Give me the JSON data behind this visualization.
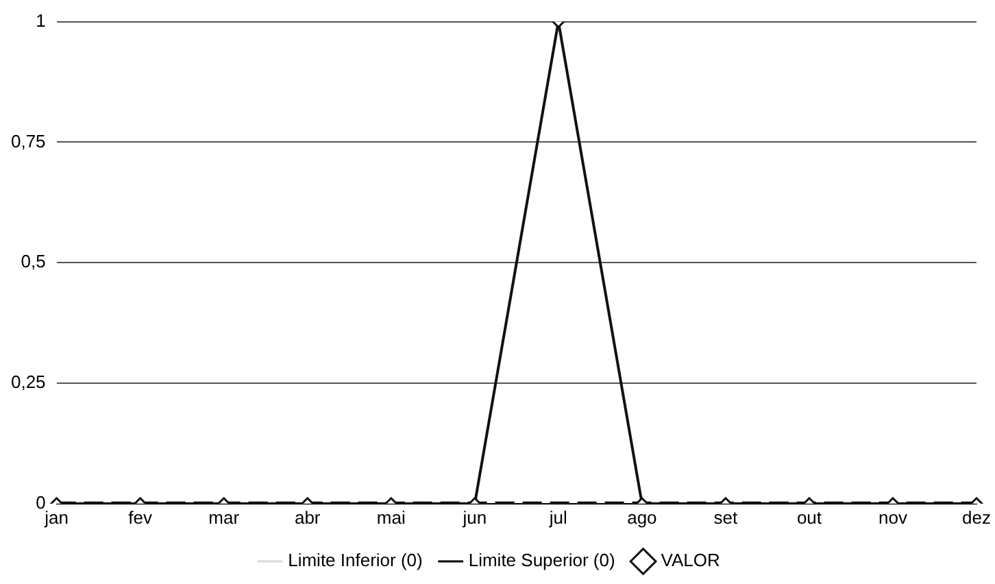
{
  "chart_data": {
    "type": "line",
    "categories": [
      "jan",
      "fev",
      "mar",
      "abr",
      "mai",
      "jun",
      "jul",
      "ago",
      "set",
      "out",
      "nov",
      "dez"
    ],
    "series": [
      {
        "name": "Limite Inferior (0)",
        "color": "#d9d9d9",
        "values": [
          0,
          0,
          0,
          0,
          0,
          0,
          0,
          0,
          0,
          0,
          0,
          0
        ],
        "line_style": "dashed",
        "marker": "none"
      },
      {
        "name": "Limite Superior (0)",
        "color": "#000000",
        "values": [
          0,
          0,
          0,
          0,
          0,
          0,
          0,
          0,
          0,
          0,
          0,
          0
        ],
        "line_style": "dashed",
        "marker": "none"
      },
      {
        "name": "VALOR",
        "color": "#111111",
        "values": [
          0,
          0,
          0,
          0,
          0,
          0,
          1,
          0,
          0,
          0,
          0,
          0
        ],
        "line_style": "solid",
        "marker": "diamond"
      }
    ],
    "ylim": [
      0,
      1
    ],
    "yticks": [
      0,
      {
        "value": 0.25,
        "label": "0,25"
      },
      {
        "value": 0.5,
        "label": "0,5"
      },
      {
        "value": 0.75,
        "label": "0,75"
      },
      1
    ],
    "grid": "y",
    "legend": "bottom"
  }
}
